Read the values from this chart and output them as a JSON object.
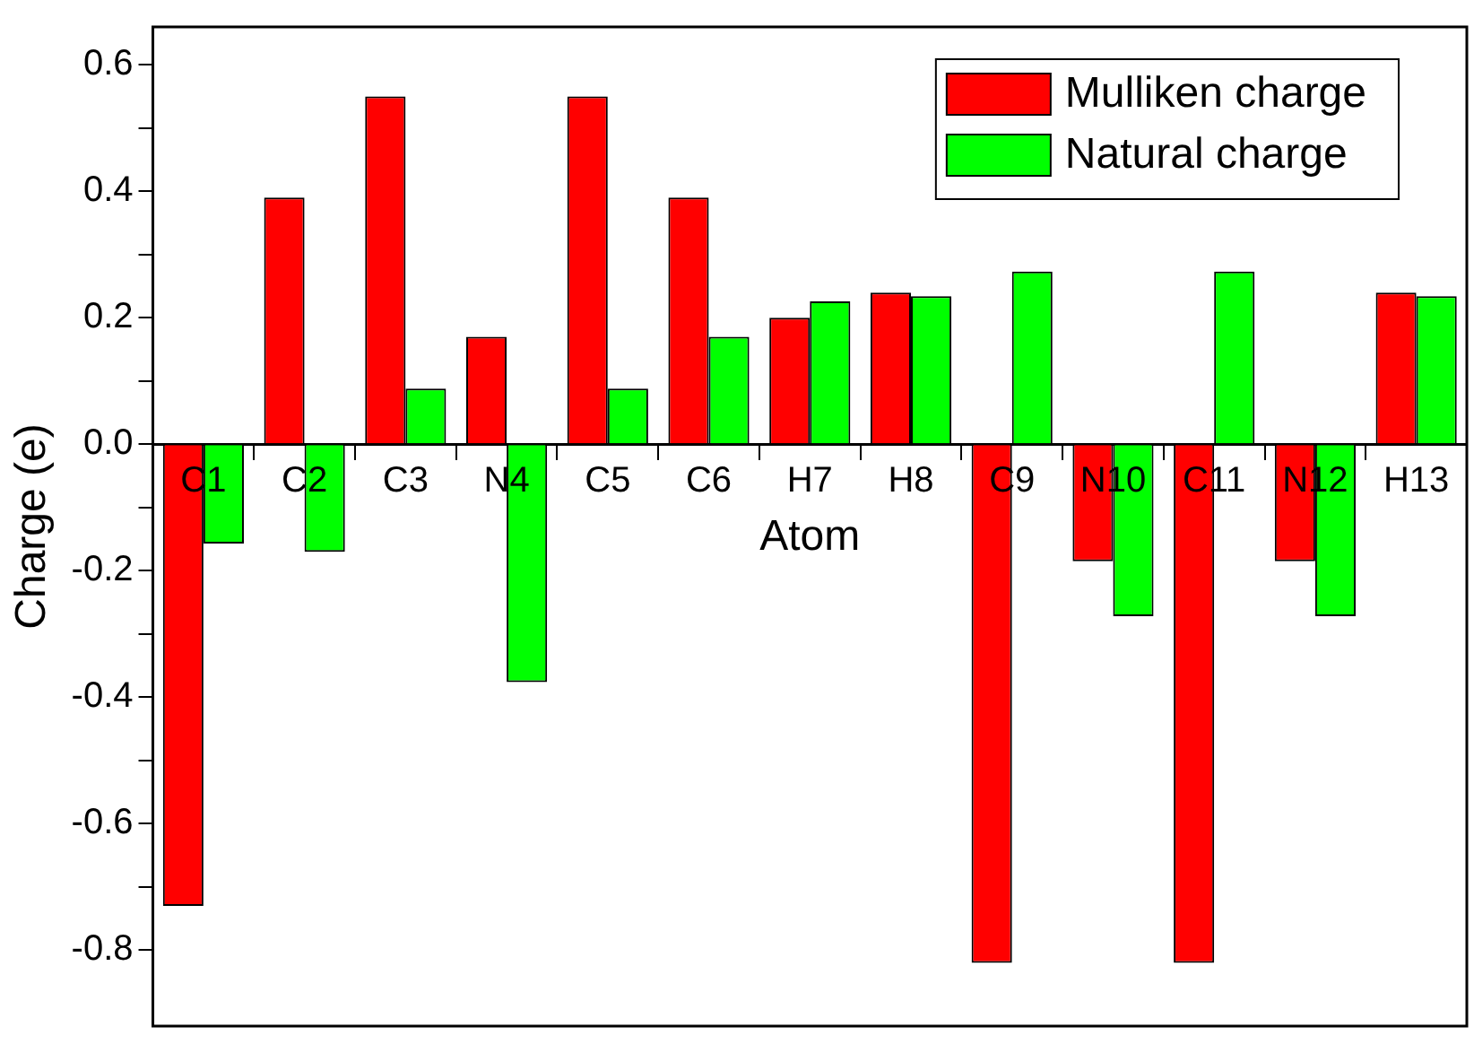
{
  "chart_data": {
    "type": "bar",
    "xlabel": "Atom",
    "ylabel": "Charge (e)",
    "categories": [
      "C1",
      "C2",
      "C3",
      "N4",
      "C5",
      "C6",
      "H7",
      "H8",
      "C9",
      "N10",
      "C11",
      "N12",
      "H13"
    ],
    "series": [
      {
        "name": "Mulliken charge",
        "color": "#ff0000",
        "values": [
          -0.73,
          0.39,
          0.55,
          0.17,
          0.55,
          0.39,
          0.2,
          0.24,
          -0.82,
          -0.185,
          -0.82,
          -0.185,
          0.24
        ]
      },
      {
        "name": "Natural charge",
        "color": "#00ff00",
        "values": [
          -0.157,
          -0.17,
          0.088,
          -0.376,
          0.088,
          0.17,
          0.226,
          0.234,
          0.273,
          -0.272,
          0.273,
          -0.272,
          0.234
        ]
      }
    ],
    "ylim": [
      -0.92,
      0.66
    ],
    "yticks": [
      -0.8,
      {
        "value": -0.7,
        "label": null
      },
      -0.6,
      {
        "value": -0.5,
        "label": null
      },
      -0.4,
      {
        "value": -0.3,
        "label": null
      },
      -0.2,
      {
        "value": -0.1,
        "label": null
      },
      {
        "value": 0,
        "label": "0.0"
      },
      {
        "value": 0.1,
        "label": null
      },
      0.2,
      {
        "value": 0.3,
        "label": null
      },
      0.4,
      {
        "value": 0.5,
        "label": null
      },
      0.6
    ],
    "grid": false,
    "legend": "top right"
  }
}
